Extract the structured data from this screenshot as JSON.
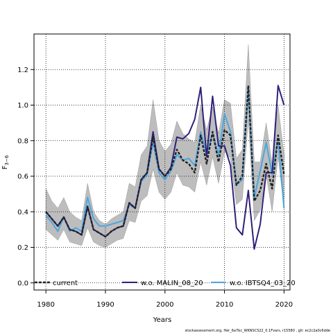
{
  "chart_data": {
    "type": "line",
    "xlabel": "Years",
    "ylabel": "F",
    "ylabel_sub": "3−6",
    "xlim": [
      1978,
      2021
    ],
    "ylim": [
      -0.04,
      1.4
    ],
    "x_ticks": [
      "1980",
      "1990",
      "2000",
      "2010",
      "2020"
    ],
    "y_ticks": [
      "0.0",
      "0.2",
      "0.4",
      "0.6",
      "0.8",
      "1.0",
      "1.2"
    ],
    "grid": true,
    "legend_position": "bottom",
    "x": [
      1980,
      1981,
      1982,
      1983,
      1984,
      1985,
      1986,
      1987,
      1988,
      1989,
      1990,
      1991,
      1992,
      1993,
      1994,
      1995,
      1996,
      1997,
      1998,
      1999,
      2000,
      2001,
      2002,
      2003,
      2004,
      2005,
      2006,
      2007,
      2008,
      2009,
      2010,
      2011,
      2012,
      2013,
      2014,
      2015,
      2016,
      2017,
      2018,
      2019,
      2020
    ],
    "band": {
      "upper": [
        0.53,
        0.46,
        0.42,
        0.48,
        0.4,
        0.37,
        0.35,
        0.56,
        0.4,
        0.35,
        0.33,
        0.36,
        0.38,
        0.4,
        0.56,
        0.54,
        0.72,
        0.77,
        1.03,
        0.8,
        0.74,
        0.78,
        0.91,
        0.84,
        0.81,
        0.79,
        1.0,
        0.86,
        0.99,
        0.84,
        1.03,
        1.01,
        0.7,
        0.75,
        1.34,
        0.68,
        0.68,
        0.9,
        0.67,
        1.0,
        0.72
      ],
      "lower": [
        0.3,
        0.27,
        0.24,
        0.3,
        0.23,
        0.22,
        0.21,
        0.31,
        0.23,
        0.21,
        0.2,
        0.22,
        0.24,
        0.25,
        0.35,
        0.34,
        0.46,
        0.49,
        0.64,
        0.51,
        0.47,
        0.51,
        0.62,
        0.55,
        0.54,
        0.51,
        0.68,
        0.55,
        0.71,
        0.56,
        0.74,
        0.7,
        0.44,
        0.47,
        0.92,
        0.35,
        0.41,
        0.61,
        0.4,
        0.71,
        0.42
      ]
    },
    "series": [
      {
        "name": "current",
        "color": "#222222",
        "style": "dashed",
        "values": [
          0.4,
          0.36,
          0.32,
          0.37,
          0.3,
          0.29,
          0.27,
          0.43,
          0.3,
          0.28,
          0.26,
          0.29,
          0.31,
          0.32,
          0.45,
          0.42,
          0.58,
          0.62,
          0.82,
          0.64,
          0.6,
          0.64,
          0.75,
          0.69,
          0.67,
          0.62,
          0.83,
          0.67,
          0.85,
          0.68,
          0.86,
          0.83,
          0.55,
          0.6,
          1.11,
          0.46,
          0.52,
          0.67,
          0.53,
          0.83,
          0.61
        ]
      },
      {
        "name": "w.o. MALIN_08_20",
        "color": "#2e1f7a",
        "style": "solid",
        "values": [
          0.4,
          0.36,
          0.32,
          0.37,
          0.3,
          0.29,
          0.27,
          0.43,
          0.3,
          0.28,
          0.26,
          0.29,
          0.31,
          0.32,
          0.45,
          0.42,
          0.58,
          0.62,
          0.85,
          0.64,
          0.6,
          0.65,
          0.82,
          0.81,
          0.84,
          0.92,
          1.1,
          0.71,
          1.05,
          0.77,
          0.77,
          0.66,
          0.31,
          0.27,
          0.52,
          0.19,
          0.33,
          0.62,
          0.62,
          1.11,
          1.0
        ]
      },
      {
        "name": "w.o. IBTSQ4_03_20",
        "color": "#4aa6e0",
        "style": "solid",
        "values": [
          0.38,
          0.34,
          0.29,
          0.37,
          0.29,
          0.31,
          0.29,
          0.48,
          0.36,
          0.32,
          0.32,
          0.33,
          0.34,
          0.35,
          0.44,
          0.42,
          0.57,
          0.61,
          0.79,
          0.62,
          0.58,
          0.63,
          0.72,
          0.69,
          0.7,
          0.66,
          0.85,
          0.72,
          0.84,
          0.72,
          0.95,
          0.85,
          0.55,
          0.58,
          1.09,
          0.48,
          0.63,
          0.79,
          0.61,
          0.81,
          0.42
        ]
      }
    ],
    "footer_note": "stockassessment.org,  Her_6a7bc_WKNSCS22_0.1Fvars,  r15580 ,  git: ec2c2a0c6dde"
  }
}
